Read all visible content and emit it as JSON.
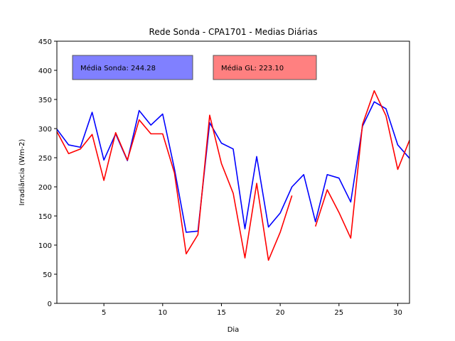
{
  "chart_data": {
    "type": "line",
    "title": "Rede Sonda - CPA1701 - Medias Diárias",
    "xlabel": "Dia",
    "ylabel": "Irradiância (Wm-2)",
    "xlim": [
      1,
      31
    ],
    "ylim": [
      0,
      450
    ],
    "xticks": [
      5,
      10,
      15,
      20,
      25,
      30
    ],
    "yticks": [
      0,
      50,
      100,
      150,
      200,
      250,
      300,
      350,
      400,
      450
    ],
    "grid": false,
    "legend": "none",
    "annotations": [
      {
        "text": "Média Sonda: 244.28",
        "color": "#8080ff"
      },
      {
        "text": "Média GL: 223.10",
        "color": "#ff8080"
      }
    ],
    "x": [
      1,
      2,
      3,
      4,
      5,
      6,
      7,
      8,
      9,
      10,
      11,
      12,
      13,
      14,
      15,
      16,
      17,
      18,
      19,
      20,
      21,
      22,
      23,
      24,
      25,
      26,
      27,
      28,
      29,
      30,
      31
    ],
    "series": [
      {
        "color": "#0000ff",
        "values": [
          299,
          272,
          268,
          328,
          246,
          291,
          245,
          331,
          306,
          325,
          231,
          122,
          124,
          310,
          275,
          265,
          128,
          252,
          131,
          155,
          200,
          221,
          140,
          221,
          215,
          174,
          304,
          346,
          334,
          272,
          249
        ]
      },
      {
        "color": "#ff0000",
        "values": [
          295,
          257,
          265,
          290,
          211,
          293,
          246,
          315,
          291,
          291,
          224,
          85,
          118,
          323,
          240,
          189,
          78,
          206,
          74,
          122,
          185,
          null,
          132,
          195,
          156,
          112,
          307,
          365,
          322,
          230,
          280
        ]
      }
    ]
  }
}
